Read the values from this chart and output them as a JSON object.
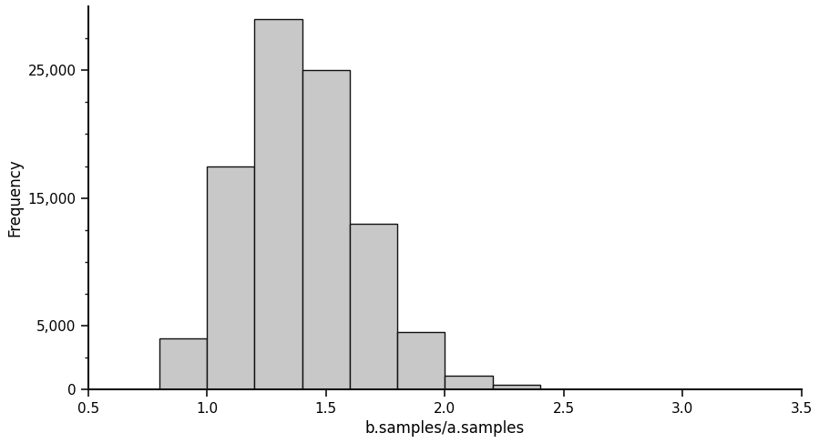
{
  "bin_edges": [
    0.8,
    1.0,
    1.2,
    1.4,
    1.6,
    1.8,
    2.0,
    2.2,
    2.4,
    2.6,
    2.8,
    3.0,
    3.2,
    3.4
  ],
  "frequencies": [
    4000,
    17500,
    29000,
    25000,
    13000,
    4500,
    1100,
    400,
    50,
    10,
    5,
    2,
    1
  ],
  "bar_color": "#c8c8c8",
  "bar_edgecolor": "#111111",
  "xlabel": "b.samples/a.samples",
  "ylabel": "Frequency",
  "xlim": [
    0.5,
    3.5
  ],
  "ylim": [
    0,
    30000
  ],
  "yticks_major": [
    0,
    5000,
    15000,
    25000
  ],
  "yticks_minor": [
    2500,
    7500,
    10000,
    12500,
    17500,
    20000,
    22500,
    27500
  ],
  "xticks": [
    0.5,
    1.0,
    1.5,
    2.0,
    2.5,
    3.0,
    3.5
  ],
  "background_color": "#ffffff",
  "spine_color": "#111111",
  "tick_labelsize": 11,
  "xlabel_fontsize": 12,
  "ylabel_fontsize": 12,
  "bar_linewidth": 1.0,
  "spine_linewidth": 1.5,
  "baseline_color": "#999999",
  "baseline_linewidth": 0.8
}
